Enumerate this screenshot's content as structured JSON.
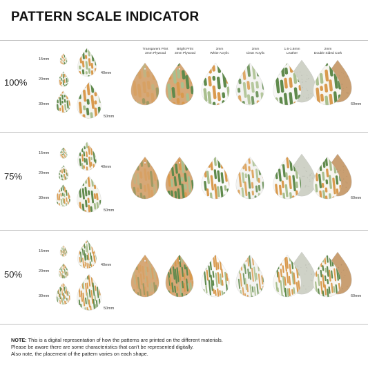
{
  "title": "PATTERN SCALE INDICATOR",
  "materials": [
    {
      "line1": "Transparent Print",
      "line2": "3mm Plywood"
    },
    {
      "line1": "Bright Print",
      "line2": "3mm Plywood"
    },
    {
      "line1": "3mm",
      "line2": "White Acrylic"
    },
    {
      "line1": "3mm",
      "line2": "Clear Acrylic"
    },
    {
      "line1": "1.6-1.8mm",
      "line2": "Leather"
    },
    {
      "line1": "2mm",
      "line2": "Double Sided Cork"
    }
  ],
  "rows": [
    {
      "scale": "100%",
      "sizes": {
        "s15": "15mm",
        "s20": "20mm",
        "s30": "30mm",
        "s40": "40mm",
        "s50": "50mm"
      },
      "dim": "60mm"
    },
    {
      "scale": "75%",
      "sizes": {
        "s15": "15mm",
        "s20": "20mm",
        "s30": "30mm",
        "s40": "40mm",
        "s50": "50mm"
      },
      "dim": "60mm"
    },
    {
      "scale": "50%",
      "sizes": {
        "s15": "15mm",
        "s20": "20mm",
        "s30": "30mm",
        "s40": "40mm",
        "s50": "50mm"
      },
      "dim": "60mm"
    }
  ],
  "note": {
    "label": "NOTE:",
    "line1": "This is a digital representation of how the patterns are printed on the different materials.",
    "line2": "Please be aware there are some characteristics that can't be represented digitally.",
    "line3": "Also note, the placement of the pattern varies on each shape."
  },
  "colors": {
    "orange": "#d99a4e",
    "green": "#5f8a4c",
    "sage": "#a9bf8e",
    "wood": "#d6a877",
    "cork": "#c99f72",
    "leather": "#cfd2c7"
  }
}
